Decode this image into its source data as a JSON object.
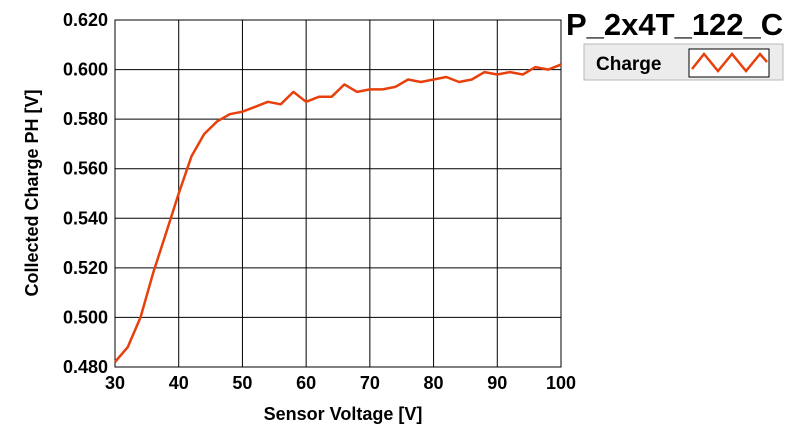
{
  "chart_data": {
    "type": "line",
    "title": "P_2x4T_122_C",
    "xlabel": "Sensor Voltage [V]",
    "ylabel": "Collected Charge PH [V]",
    "xlim": [
      30,
      100
    ],
    "ylim": [
      0.48,
      0.62
    ],
    "xticks": [
      "30",
      "40",
      "50",
      "60",
      "70",
      "80",
      "90",
      "100"
    ],
    "yticks": [
      "0.480",
      "0.500",
      "0.520",
      "0.540",
      "0.560",
      "0.580",
      "0.600",
      "0.620"
    ],
    "grid": true,
    "legend_position": "top-right",
    "series": [
      {
        "name": "Charge",
        "color": "#e8400c",
        "x": [
          30,
          32,
          34,
          36,
          38,
          40,
          42,
          44,
          46,
          48,
          50,
          52,
          54,
          56,
          58,
          60,
          62,
          64,
          66,
          68,
          70,
          72,
          74,
          76,
          78,
          80,
          82,
          84,
          86,
          88,
          90,
          92,
          94,
          96,
          98,
          100
        ],
        "y": [
          0.482,
          0.488,
          0.5,
          0.518,
          0.534,
          0.55,
          0.565,
          0.574,
          0.579,
          0.582,
          0.583,
          0.585,
          0.587,
          0.586,
          0.591,
          0.587,
          0.589,
          0.589,
          0.594,
          0.591,
          0.592,
          0.592,
          0.593,
          0.596,
          0.595,
          0.596,
          0.597,
          0.595,
          0.596,
          0.599,
          0.598,
          0.599,
          0.598,
          0.601,
          0.6,
          0.602
        ]
      }
    ]
  }
}
